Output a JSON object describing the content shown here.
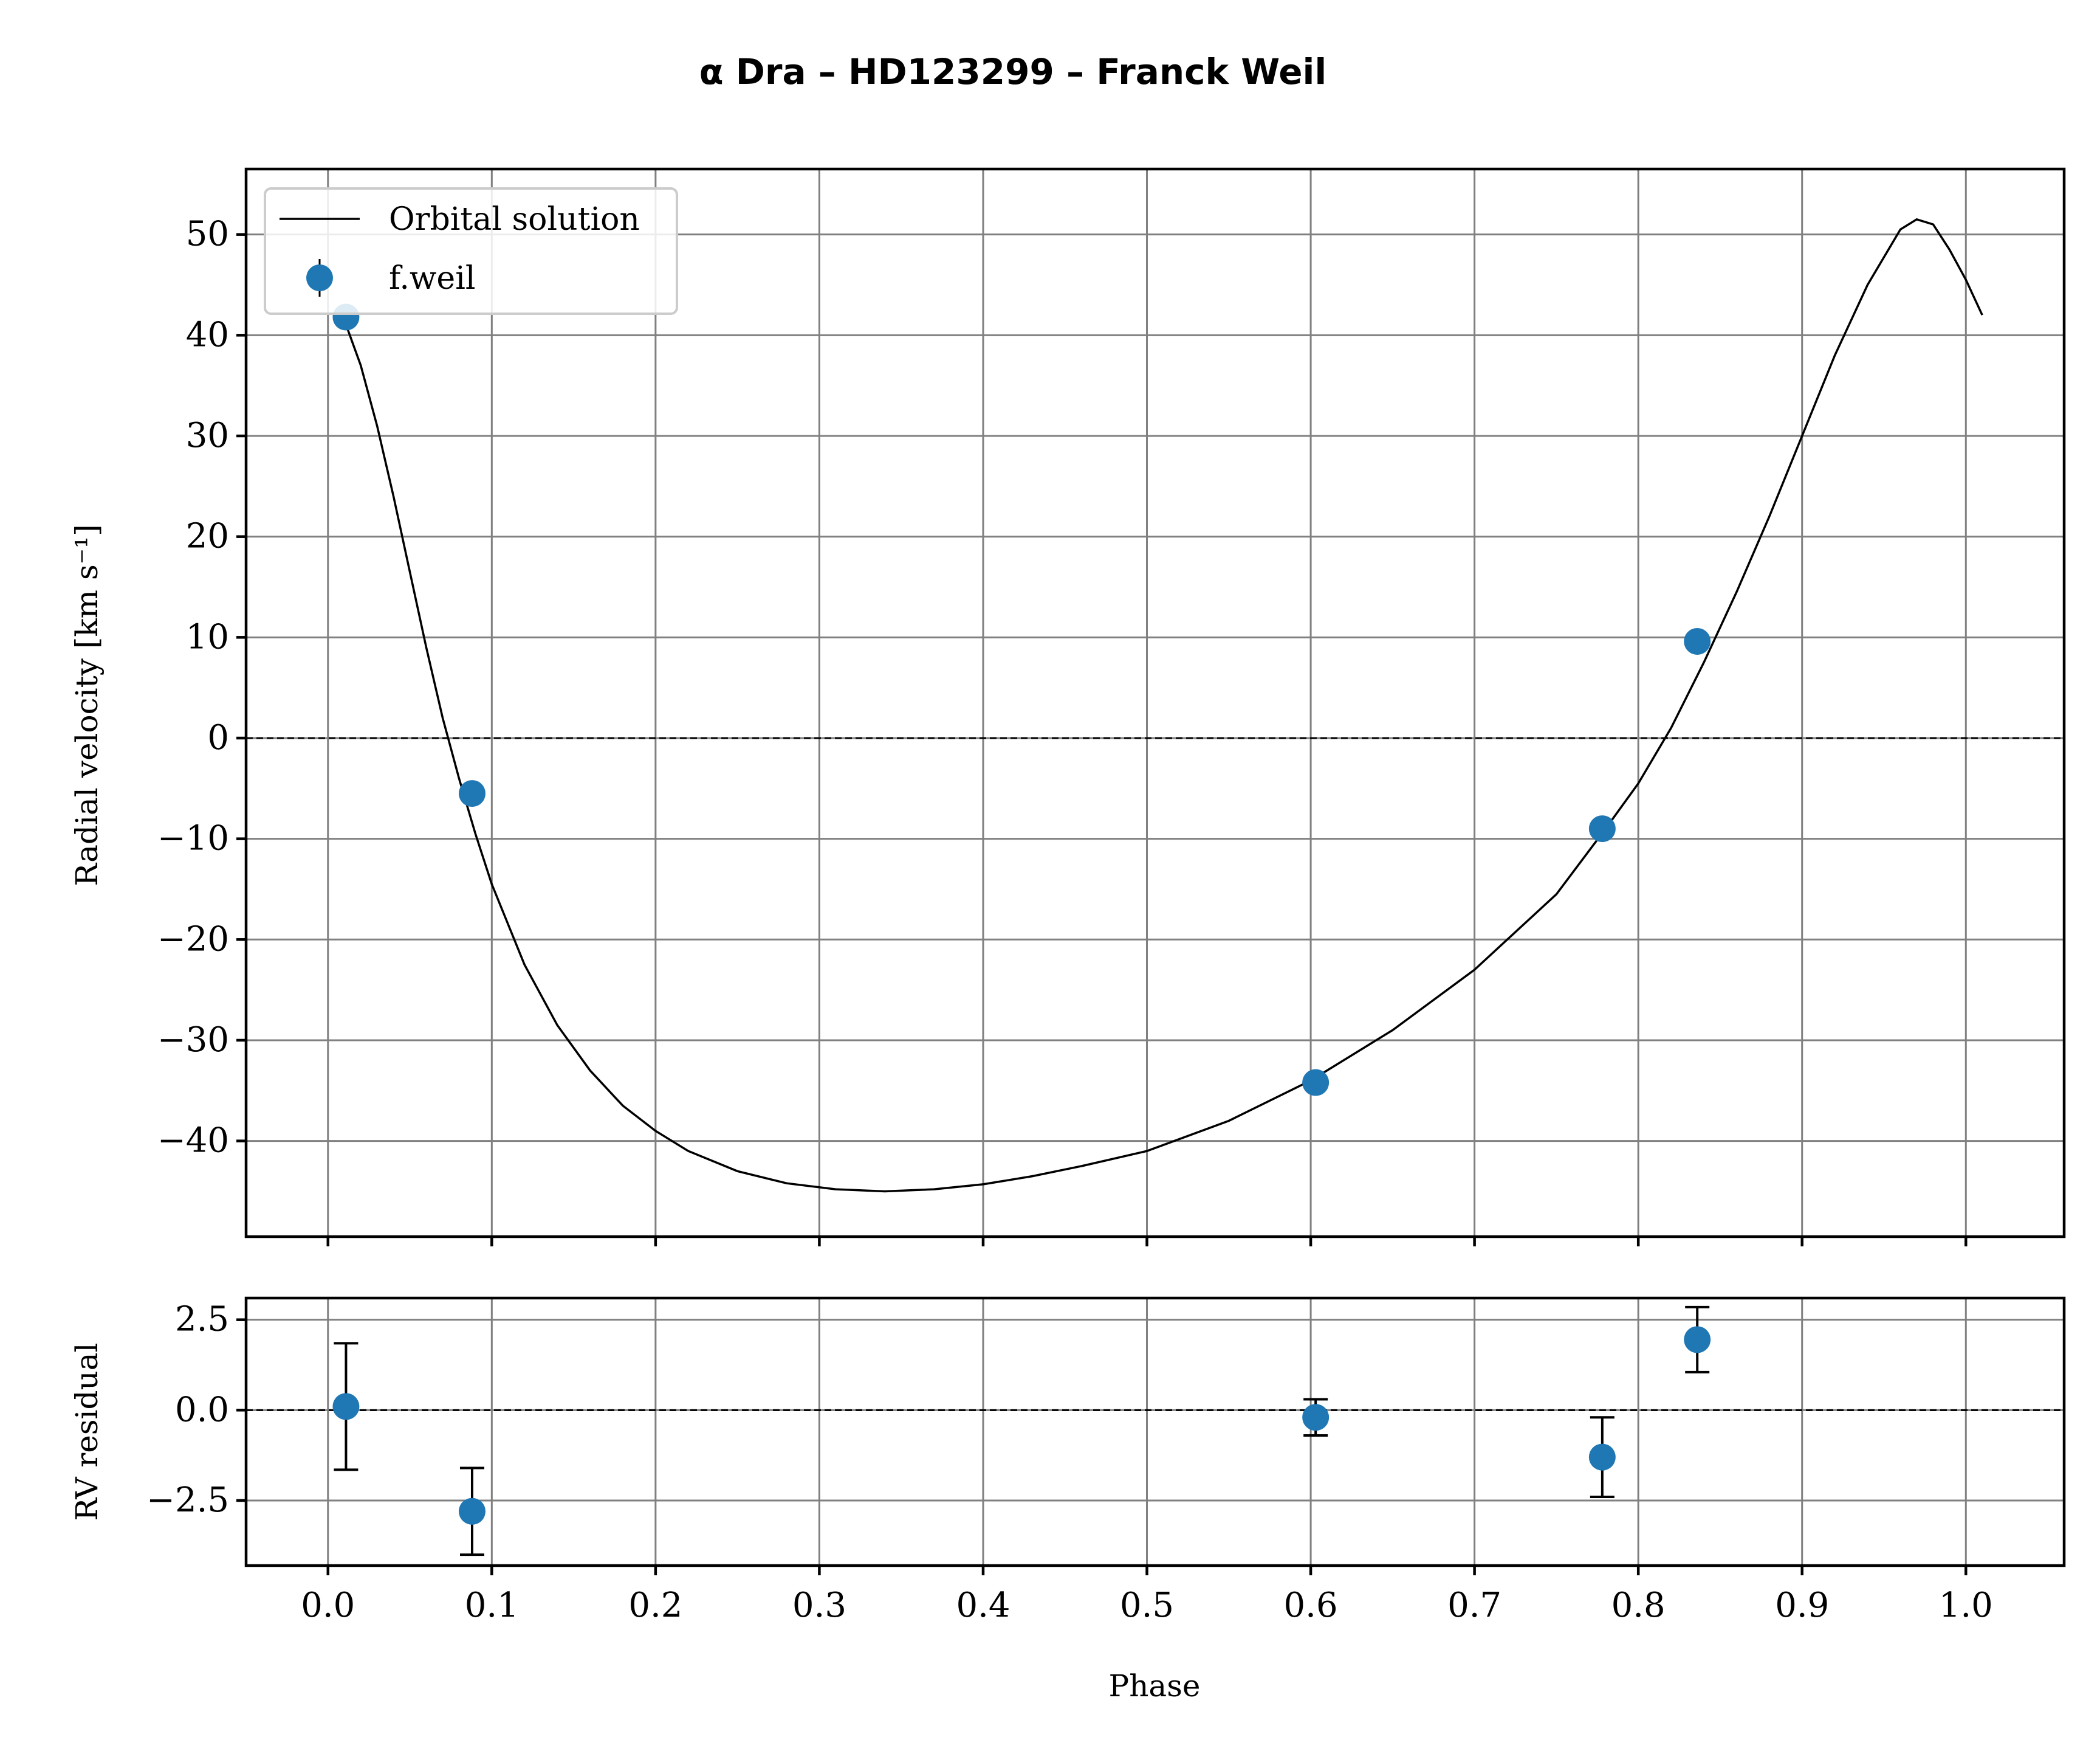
{
  "chart_data": [
    {
      "type": "scatter",
      "title": "α Dra – HD123299 – Franck Weil",
      "xlabel": "",
      "ylabel": "Radial velocity [km s⁻¹]",
      "xlim": [
        -0.05,
        1.06
      ],
      "ylim": [
        -49.5,
        56.5
      ],
      "x_ticks": [
        0.0,
        0.1,
        0.2,
        0.3,
        0.4,
        0.5,
        0.6,
        0.7,
        0.8,
        0.9,
        1.0
      ],
      "y_ticks": [
        50,
        40,
        30,
        20,
        10,
        0,
        -10,
        -20,
        -30,
        -40
      ],
      "y_tick_labels": [
        "50",
        "40",
        "30",
        "20",
        "10",
        "0",
        "−10",
        "−20",
        "−30",
        "−40"
      ],
      "grid": true,
      "legend": {
        "placement": "top-left",
        "entries": [
          "Orbital solution",
          "f.weil"
        ]
      },
      "reference_line": {
        "y": 0,
        "style": "dashed"
      },
      "series": [
        {
          "name": "Orbital solution",
          "kind": "line",
          "color": "#000000",
          "x": [
            0.01,
            0.02,
            0.03,
            0.04,
            0.05,
            0.06,
            0.07,
            0.08,
            0.09,
            0.1,
            0.12,
            0.14,
            0.16,
            0.18,
            0.2,
            0.22,
            0.25,
            0.28,
            0.31,
            0.34,
            0.37,
            0.4,
            0.43,
            0.46,
            0.5,
            0.55,
            0.6,
            0.65,
            0.7,
            0.75,
            0.78,
            0.8,
            0.82,
            0.84,
            0.86,
            0.88,
            0.9,
            0.92,
            0.94,
            0.96,
            0.97,
            0.98,
            0.99,
            1.0,
            1.01
          ],
          "y": [
            41.5,
            37.0,
            31.0,
            24.0,
            16.5,
            9.0,
            2.0,
            -4.0,
            -9.5,
            -14.5,
            -22.5,
            -28.5,
            -33.0,
            -36.5,
            -39.0,
            -41.0,
            -43.0,
            -44.2,
            -44.8,
            -45.0,
            -44.8,
            -44.3,
            -43.5,
            -42.5,
            -41.0,
            -38.0,
            -34.0,
            -29.0,
            -23.0,
            -15.5,
            -9.0,
            -4.5,
            1.0,
            7.5,
            14.5,
            22.0,
            30.0,
            38.0,
            45.0,
            50.5,
            51.5,
            51.0,
            48.5,
            45.5,
            42.0
          ]
        },
        {
          "name": "f.weil",
          "kind": "points",
          "color": "#1f77b4",
          "x": [
            0.011,
            0.088,
            0.603,
            0.778,
            0.836
          ],
          "y": [
            41.8,
            -5.5,
            -34.2,
            -9.0,
            9.6
          ]
        }
      ]
    },
    {
      "type": "scatter",
      "title": "",
      "xlabel": "Phase",
      "ylabel": "RV residual",
      "xlim": [
        -0.05,
        1.06
      ],
      "ylim": [
        -4.3,
        3.1
      ],
      "x_ticks": [
        0.0,
        0.1,
        0.2,
        0.3,
        0.4,
        0.5,
        0.6,
        0.7,
        0.8,
        0.9,
        1.0
      ],
      "x_tick_labels": [
        "0.0",
        "0.1",
        "0.2",
        "0.3",
        "0.4",
        "0.5",
        "0.6",
        "0.7",
        "0.8",
        "0.9",
        "1.0"
      ],
      "y_ticks": [
        2.5,
        0.0,
        -2.5
      ],
      "y_tick_labels": [
        "2.5",
        "0.0",
        "−2.5"
      ],
      "grid": true,
      "reference_line": {
        "y": 0,
        "style": "dashed"
      },
      "series": [
        {
          "name": "",
          "kind": "points_with_errorbars",
          "color": "#1f77b4",
          "x": [
            0.011,
            0.088,
            0.603,
            0.778,
            0.836
          ],
          "y": [
            0.1,
            -2.8,
            -0.2,
            -1.3,
            1.95
          ],
          "yerr": [
            1.75,
            1.2,
            0.5,
            1.1,
            0.9
          ]
        }
      ]
    }
  ]
}
